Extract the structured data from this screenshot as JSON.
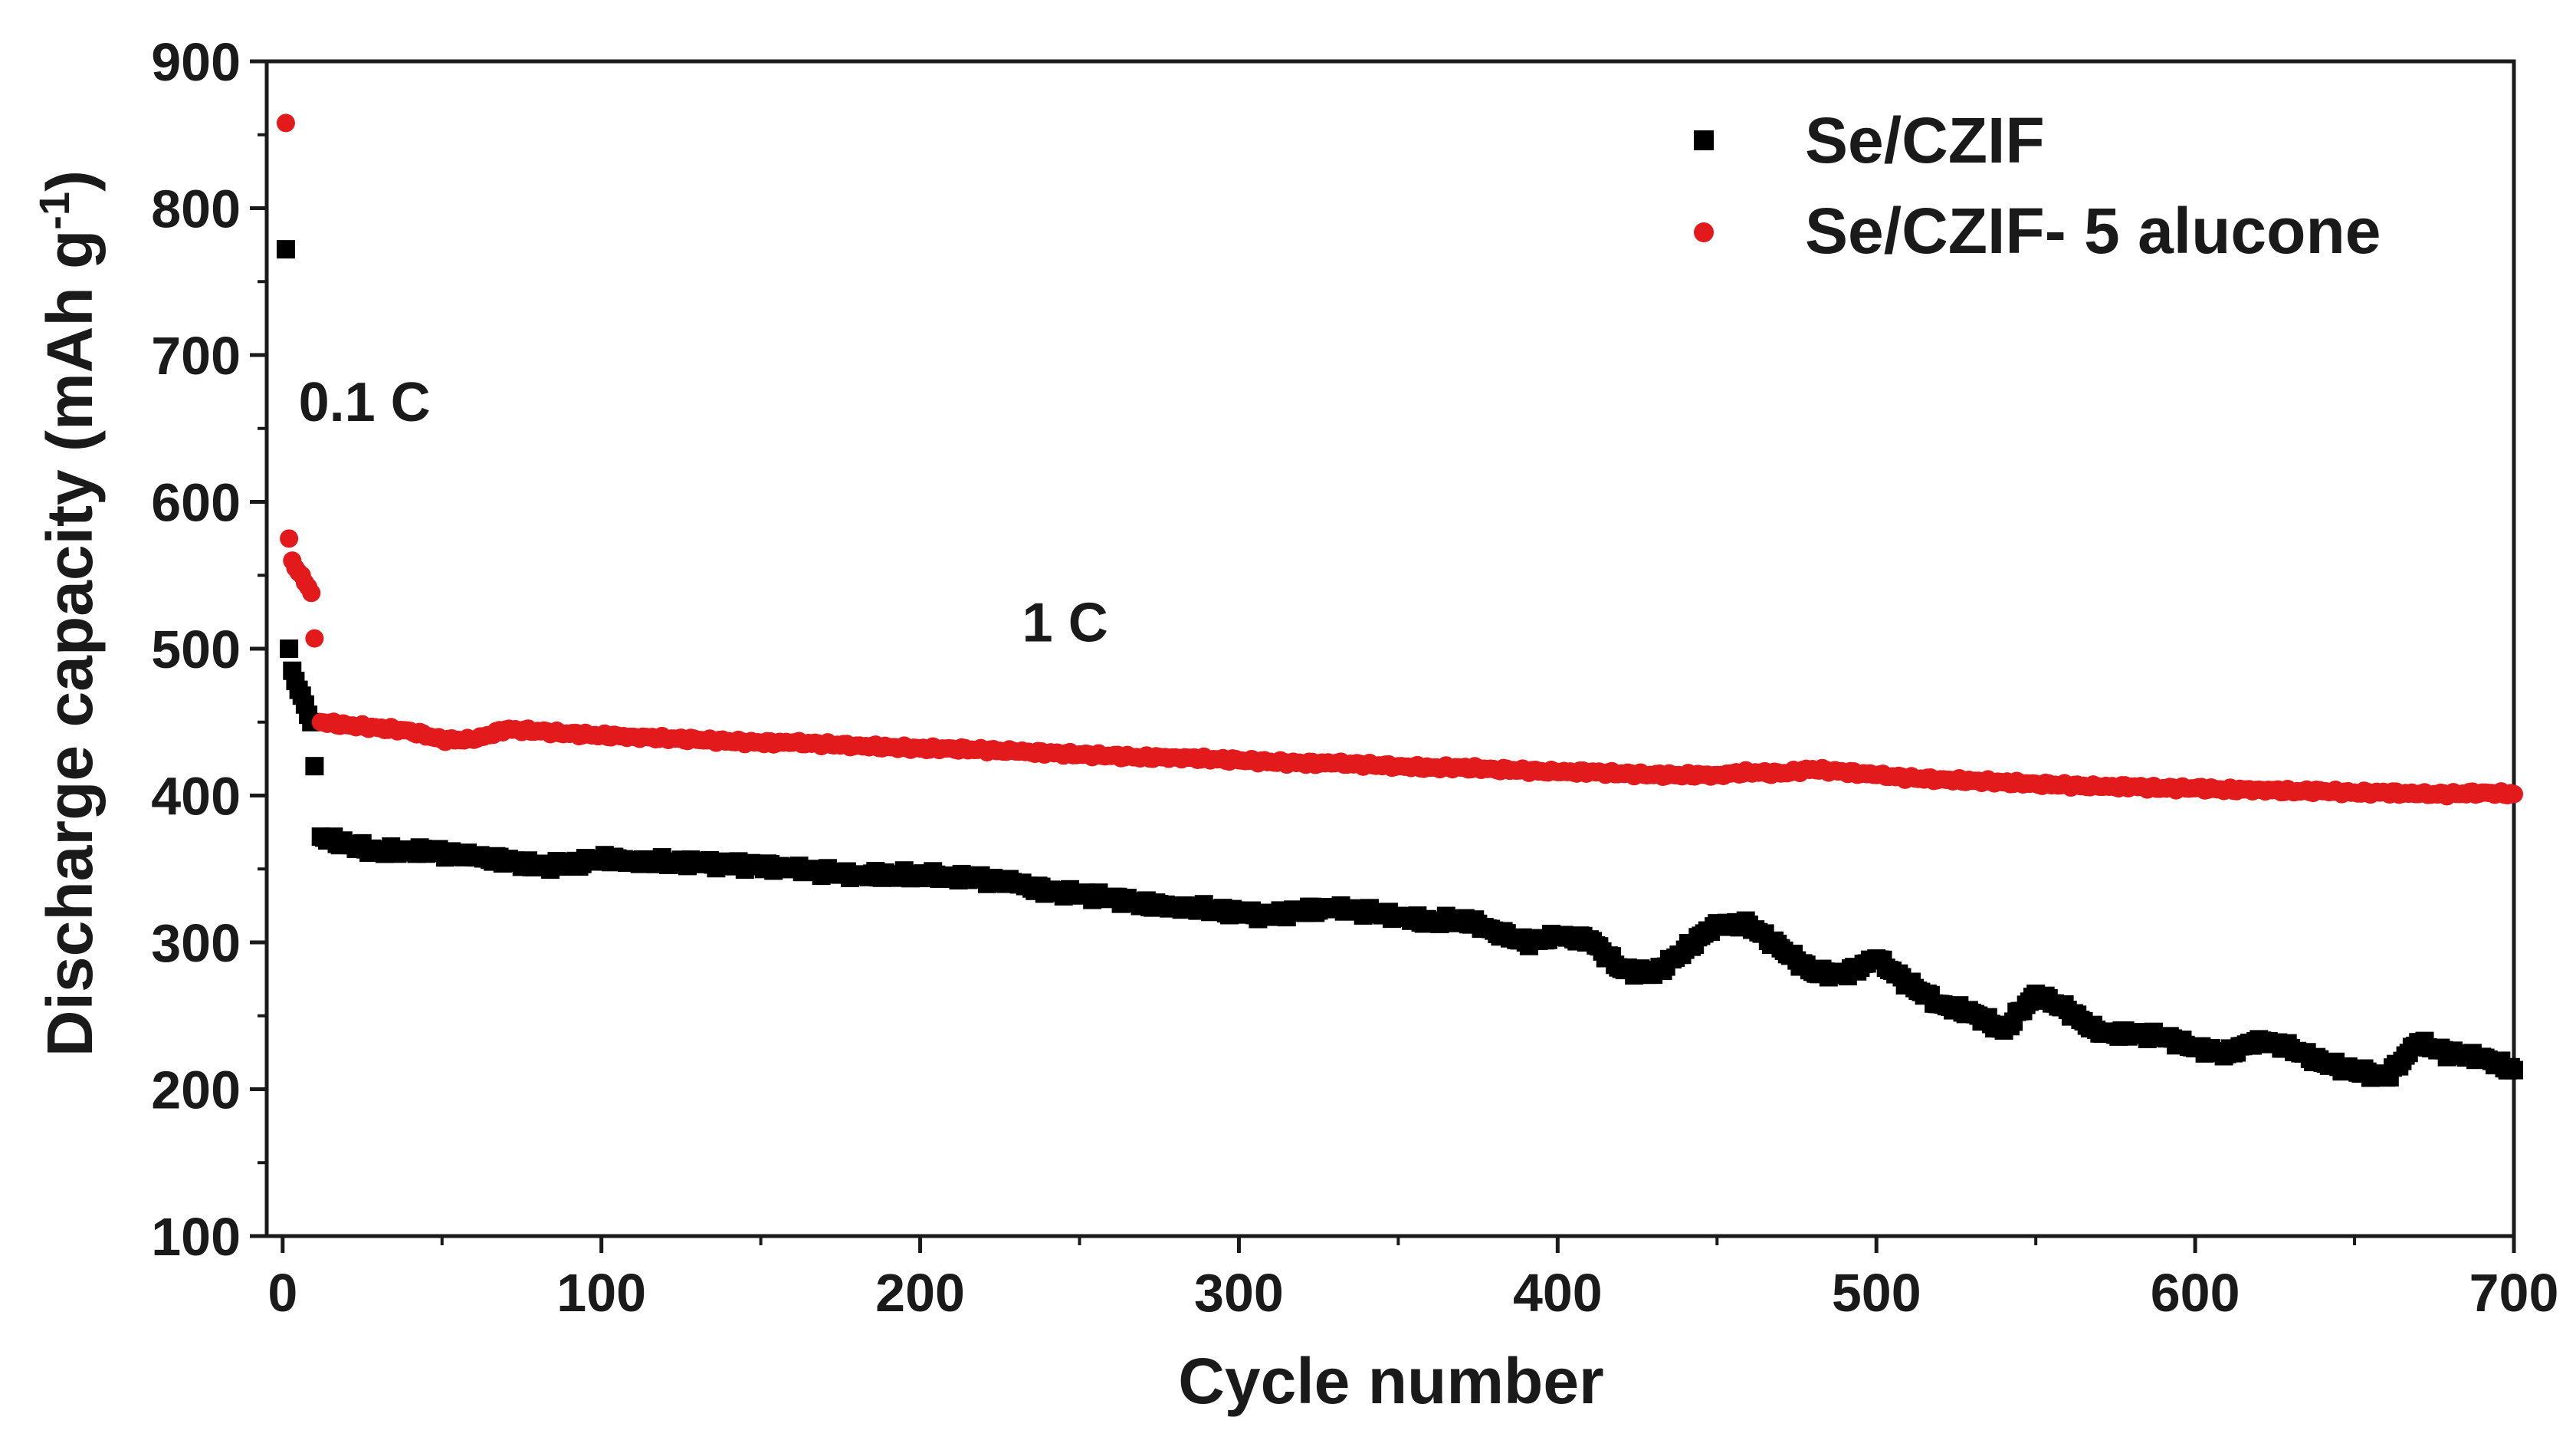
{
  "chart_data": {
    "type": "scatter",
    "title": "",
    "xlabel": "Cycle number",
    "ylabel": "Discharge capacity (mAh g",
    "ylabel_sup": "-1",
    "ylabel_close": ")",
    "xlim": [
      -5,
      700
    ],
    "ylim": [
      100,
      900
    ],
    "xticks": [
      0,
      100,
      200,
      300,
      400,
      500,
      600,
      700
    ],
    "yticks": [
      100,
      200,
      300,
      400,
      500,
      600,
      700,
      800,
      900
    ],
    "xtick_labels": [
      "0",
      "100",
      "200",
      "300",
      "400",
      "500",
      "600",
      "700"
    ],
    "ytick_labels": [
      "100",
      "200",
      "300",
      "400",
      "500",
      "600",
      "700",
      "800",
      "900"
    ],
    "legend_position": "top-right",
    "annotations": [
      {
        "text": "0.1 C",
        "x": 5,
        "y": 655
      },
      {
        "text": "1 C",
        "x": 232,
        "y": 505
      }
    ],
    "series": [
      {
        "name": "Se/CZIF",
        "marker": "square",
        "color": "#000000",
        "points": [
          [
            1,
            772
          ],
          [
            2,
            500
          ],
          [
            3,
            485
          ],
          [
            4,
            478
          ],
          [
            5,
            472
          ],
          [
            6,
            468
          ],
          [
            7,
            462
          ],
          [
            8,
            455
          ],
          [
            9,
            450
          ],
          [
            10,
            420
          ],
          [
            12,
            372
          ],
          [
            20,
            367
          ],
          [
            30,
            362
          ],
          [
            40,
            363
          ],
          [
            50,
            361
          ],
          [
            60,
            358
          ],
          [
            70,
            356
          ],
          [
            80,
            352
          ],
          [
            90,
            353
          ],
          [
            100,
            357
          ],
          [
            110,
            356
          ],
          [
            120,
            355
          ],
          [
            130,
            354
          ],
          [
            140,
            353
          ],
          [
            150,
            352
          ],
          [
            160,
            350
          ],
          [
            170,
            348
          ],
          [
            180,
            346
          ],
          [
            190,
            346
          ],
          [
            200,
            346
          ],
          [
            210,
            345
          ],
          [
            220,
            343
          ],
          [
            230,
            340
          ],
          [
            240,
            335
          ],
          [
            250,
            333
          ],
          [
            260,
            330
          ],
          [
            270,
            326
          ],
          [
            280,
            325
          ],
          [
            290,
            323
          ],
          [
            300,
            320
          ],
          [
            310,
            318
          ],
          [
            320,
            322
          ],
          [
            330,
            323
          ],
          [
            340,
            321
          ],
          [
            350,
            318
          ],
          [
            360,
            314
          ],
          [
            370,
            316
          ],
          [
            380,
            308
          ],
          [
            390,
            300
          ],
          [
            400,
            304
          ],
          [
            410,
            302
          ],
          [
            420,
            282
          ],
          [
            430,
            278
          ],
          [
            440,
            295
          ],
          [
            450,
            313
          ],
          [
            460,
            312
          ],
          [
            470,
            296
          ],
          [
            480,
            280
          ],
          [
            490,
            278
          ],
          [
            500,
            289
          ],
          [
            510,
            272
          ],
          [
            520,
            258
          ],
          [
            530,
            252
          ],
          [
            540,
            240
          ],
          [
            550,
            265
          ],
          [
            560,
            254
          ],
          [
            570,
            238
          ],
          [
            580,
            238
          ],
          [
            590,
            236
          ],
          [
            600,
            228
          ],
          [
            610,
            224
          ],
          [
            620,
            234
          ],
          [
            630,
            228
          ],
          [
            640,
            218
          ],
          [
            650,
            213
          ],
          [
            660,
            208
          ],
          [
            670,
            232
          ],
          [
            680,
            224
          ],
          [
            690,
            222
          ],
          [
            700,
            213
          ]
        ]
      },
      {
        "name": "Se/CZIF- 5 alucone",
        "marker": "circle",
        "color": "#e31a1c",
        "points": [
          [
            1,
            858
          ],
          [
            2,
            575
          ],
          [
            3,
            560
          ],
          [
            4,
            555
          ],
          [
            5,
            552
          ],
          [
            6,
            550
          ],
          [
            7,
            545
          ],
          [
            8,
            542
          ],
          [
            9,
            538
          ],
          [
            10,
            507
          ],
          [
            12,
            450
          ],
          [
            20,
            448
          ],
          [
            30,
            446
          ],
          [
            40,
            444
          ],
          [
            50,
            438
          ],
          [
            60,
            438
          ],
          [
            70,
            445
          ],
          [
            80,
            444
          ],
          [
            90,
            442
          ],
          [
            100,
            441
          ],
          [
            110,
            440
          ],
          [
            120,
            439
          ],
          [
            130,
            438
          ],
          [
            140,
            437
          ],
          [
            150,
            436
          ],
          [
            160,
            436
          ],
          [
            170,
            435
          ],
          [
            180,
            434
          ],
          [
            190,
            433
          ],
          [
            200,
            432
          ],
          [
            210,
            432
          ],
          [
            220,
            431
          ],
          [
            230,
            430
          ],
          [
            240,
            429
          ],
          [
            250,
            428
          ],
          [
            260,
            427
          ],
          [
            270,
            426
          ],
          [
            280,
            426
          ],
          [
            290,
            425
          ],
          [
            300,
            424
          ],
          [
            310,
            423
          ],
          [
            320,
            422
          ],
          [
            330,
            422
          ],
          [
            340,
            421
          ],
          [
            350,
            420
          ],
          [
            360,
            419
          ],
          [
            370,
            419
          ],
          [
            380,
            418
          ],
          [
            390,
            417
          ],
          [
            400,
            416
          ],
          [
            410,
            416
          ],
          [
            420,
            415
          ],
          [
            430,
            414
          ],
          [
            440,
            414
          ],
          [
            450,
            414
          ],
          [
            460,
            416
          ],
          [
            470,
            415
          ],
          [
            480,
            418
          ],
          [
            490,
            416
          ],
          [
            500,
            414
          ],
          [
            510,
            412
          ],
          [
            520,
            411
          ],
          [
            530,
            410
          ],
          [
            540,
            409
          ],
          [
            550,
            408
          ],
          [
            560,
            407
          ],
          [
            570,
            406
          ],
          [
            580,
            406
          ],
          [
            590,
            405
          ],
          [
            600,
            405
          ],
          [
            610,
            404
          ],
          [
            620,
            404
          ],
          [
            630,
            403
          ],
          [
            640,
            403
          ],
          [
            650,
            402
          ],
          [
            660,
            402
          ],
          [
            670,
            401
          ],
          [
            680,
            401
          ],
          [
            690,
            402
          ],
          [
            700,
            401
          ]
        ]
      }
    ]
  }
}
